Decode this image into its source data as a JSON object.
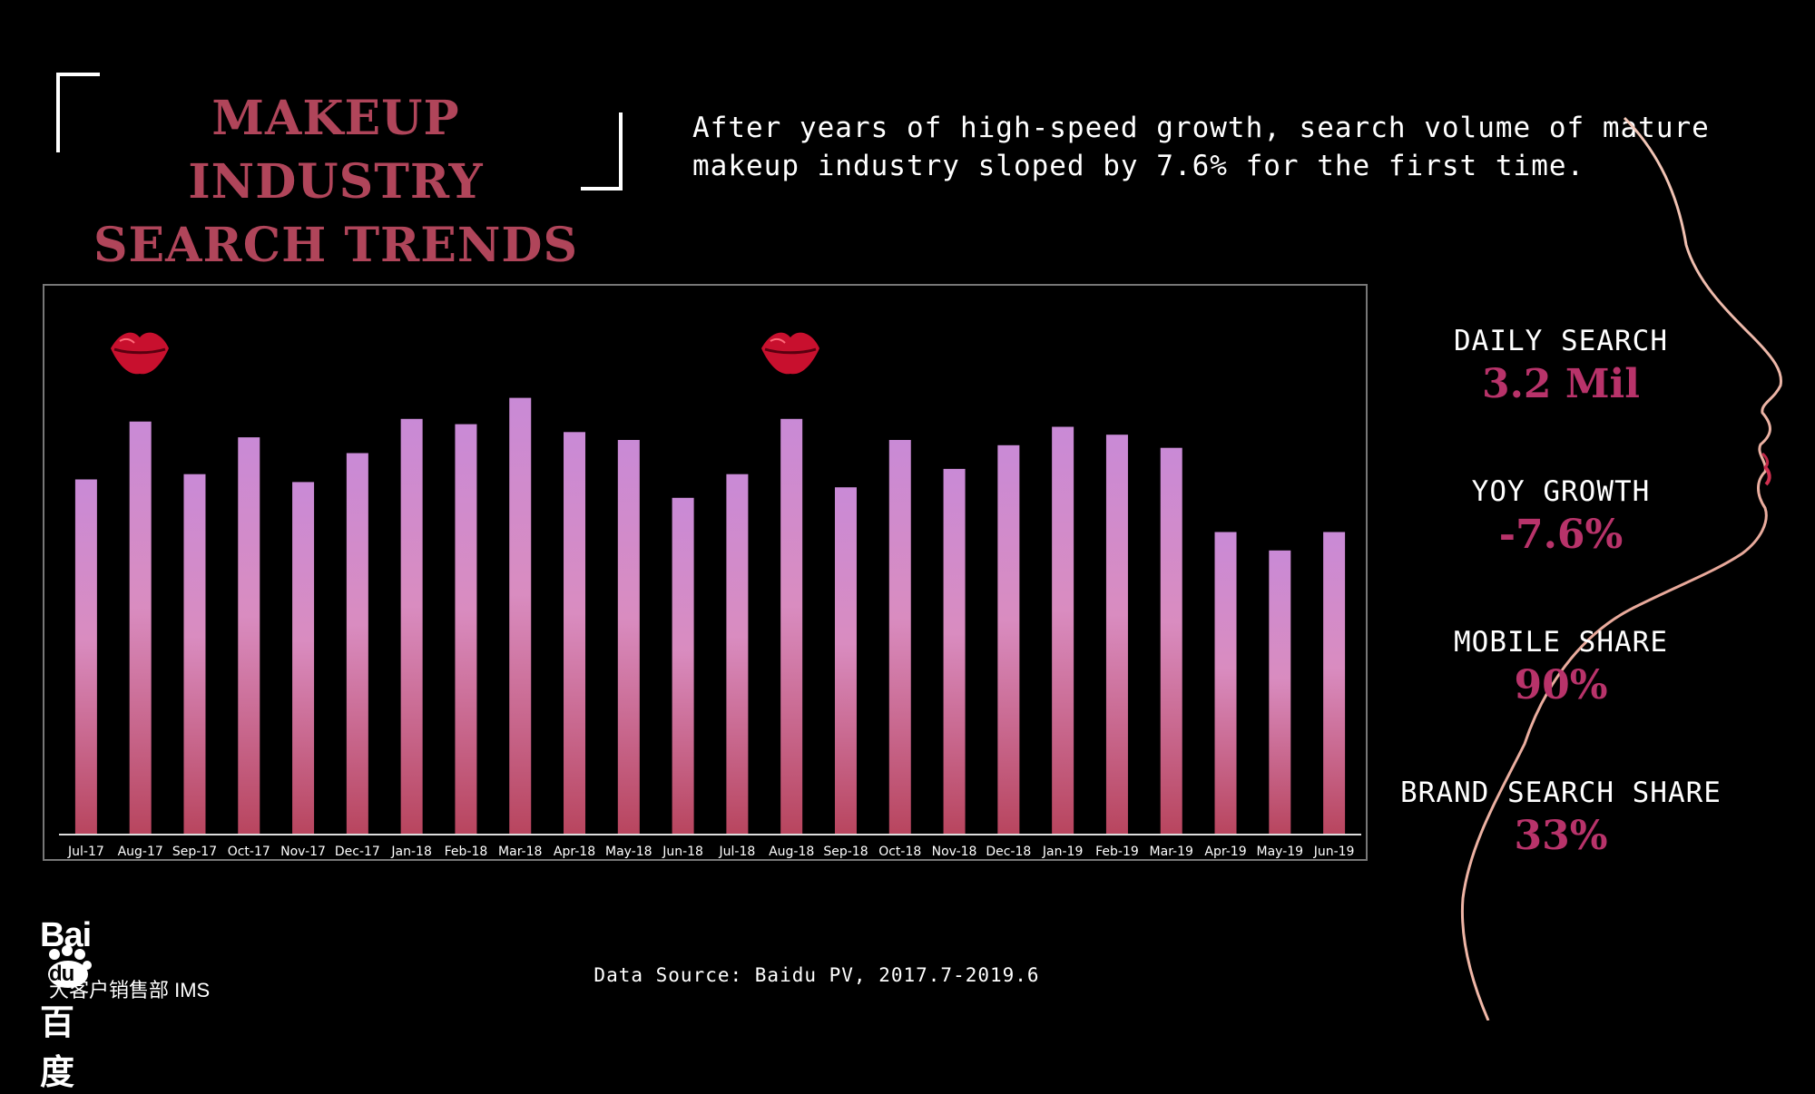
{
  "header": {
    "title_line1": "MAKEUP INDUSTRY",
    "title_line2": "SEARCH TRENDS",
    "subtitle_line1": "After years of high-speed growth, search volume of mature",
    "subtitle_line2": "makeup industry sloped by 7.6% for the first time."
  },
  "kpis": [
    {
      "label": "DAILY SEARCH",
      "value": "3.2 Mil"
    },
    {
      "label": "YOY GROWTH",
      "value": "-7.6%"
    },
    {
      "label": "MOBILE SHARE",
      "value": "90%"
    },
    {
      "label": "BRAND SEARCH SHARE",
      "value": "33%"
    }
  ],
  "footer": {
    "source": "Data Source: Baidu PV, 2017.7-2019.6",
    "logo_text": "Bai",
    "logo_du": "du",
    "logo_chinese": "百度",
    "logo_sub": "大客户销售部 IMS"
  },
  "colors": {
    "title": "#b0455a",
    "kpi_value": "#b8336a",
    "bar_top": "#c98ad6",
    "bar_mid": "#d98cc0",
    "bar_bottom": "#b8455e"
  },
  "chart_data": {
    "type": "bar",
    "title": "",
    "xlabel": "",
    "ylabel": "",
    "ylim": [
      0,
      100
    ],
    "categories": [
      "Jul-17",
      "Aug-17",
      "Sep-17",
      "Oct-17",
      "Nov-17",
      "Dec-17",
      "Jan-18",
      "Feb-18",
      "Mar-18",
      "Apr-18",
      "May-18",
      "Jun-18",
      "Jul-18",
      "Aug-18",
      "Sep-18",
      "Oct-18",
      "Nov-18",
      "Dec-18",
      "Jan-19",
      "Feb-19",
      "Mar-19",
      "Apr-19",
      "May-19",
      "Jun-19"
    ],
    "values": [
      67.5,
      78.5,
      68.5,
      75.5,
      67,
      72.5,
      79,
      78,
      83,
      76.5,
      75,
      64,
      68.5,
      79,
      66,
      75,
      69.5,
      74,
      77.5,
      76,
      73.5,
      57.5,
      54,
      57.5
    ],
    "grid": false,
    "legend": "none"
  }
}
